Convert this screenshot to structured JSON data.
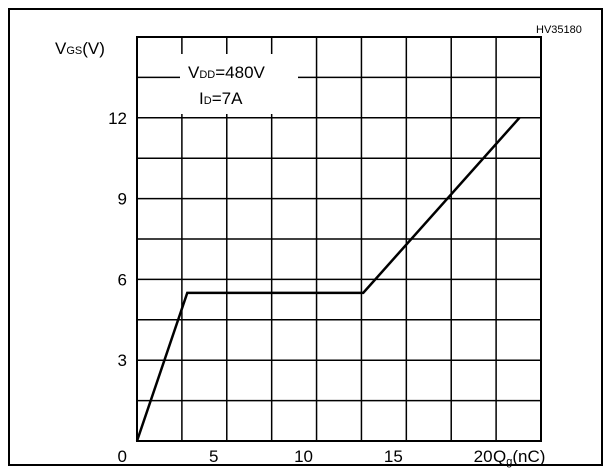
{
  "colors": {
    "background": "#ffffff",
    "ink": "#000000"
  },
  "chart_data": {
    "type": "line",
    "figure_code": "HV35180",
    "ylabel_main": "V",
    "ylabel_sub": "GS",
    "ylabel_unit": "(V)",
    "xlabel_main": "Q",
    "xlabel_sub": "g",
    "xlabel_unit": "(nC)",
    "annotation": {
      "line1_main": "V",
      "line1_sub": "DD",
      "line1_rest": "=480V",
      "line2_main": "I",
      "line2_sub": "D",
      "line2_rest": "=7A"
    },
    "xlim": [
      0,
      22.5
    ],
    "ylim": [
      0,
      15
    ],
    "x_ticks": [
      0,
      5,
      10,
      15,
      20
    ],
    "x_tick_labels": [
      "0",
      "5",
      "10",
      "15",
      "20"
    ],
    "y_ticks": [
      3,
      6,
      9,
      12
    ],
    "y_tick_labels": [
      "3",
      "6",
      "9",
      "12"
    ],
    "x_grid": [
      2.5,
      5,
      7.5,
      10,
      12.5,
      15,
      17.5,
      20
    ],
    "y_grid": [
      1.5,
      3,
      4.5,
      6,
      7.5,
      9,
      10.5,
      12,
      13.5
    ],
    "grid": true,
    "series": [
      {
        "x": [
          0,
          2.8,
          12.6,
          21.3
        ],
        "y": [
          0,
          5.5,
          5.5,
          12
        ]
      }
    ]
  }
}
